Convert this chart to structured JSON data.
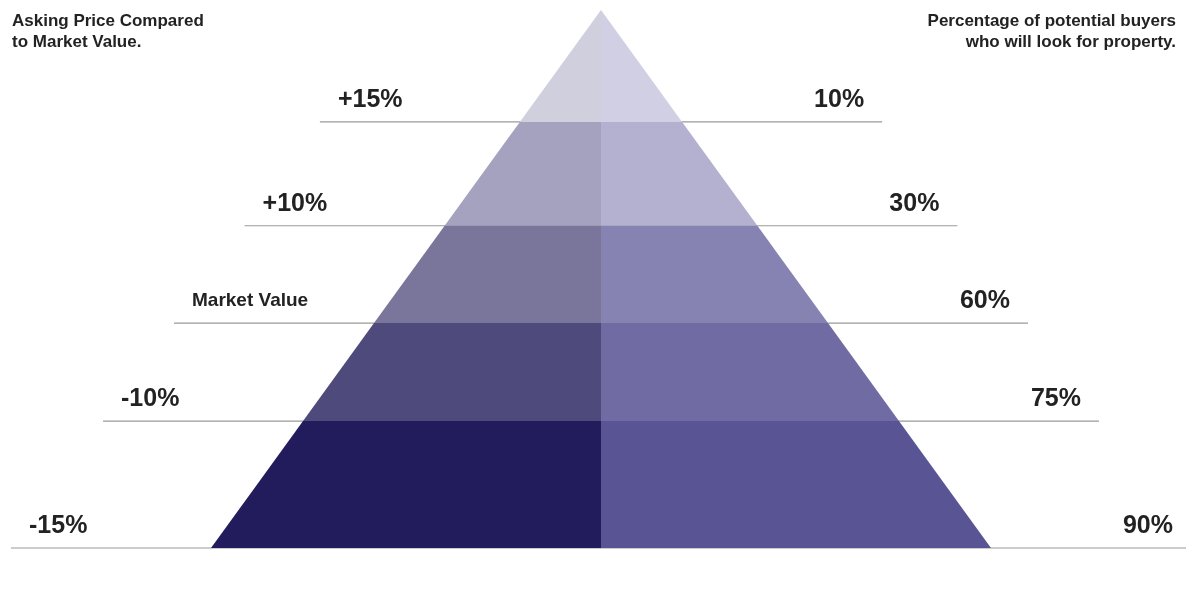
{
  "chart_data": {
    "type": "other",
    "ylabel": "Asking Price Compared\nto Market Value.",
    "y2label": "Percentage of potential buyers\nwho will look for property.",
    "categories": [
      "+15%",
      "+10%",
      "Market Value",
      "-10%",
      "-15%"
    ],
    "values": [
      10,
      30,
      60,
      75,
      90
    ],
    "value_labels": [
      "10%",
      "30%",
      "60%",
      "75%",
      "90%"
    ],
    "colors": [
      "#cfcfdd",
      "#a4a2bf",
      "#7a769b",
      "#4f4a7c",
      "#221c5c"
    ]
  }
}
